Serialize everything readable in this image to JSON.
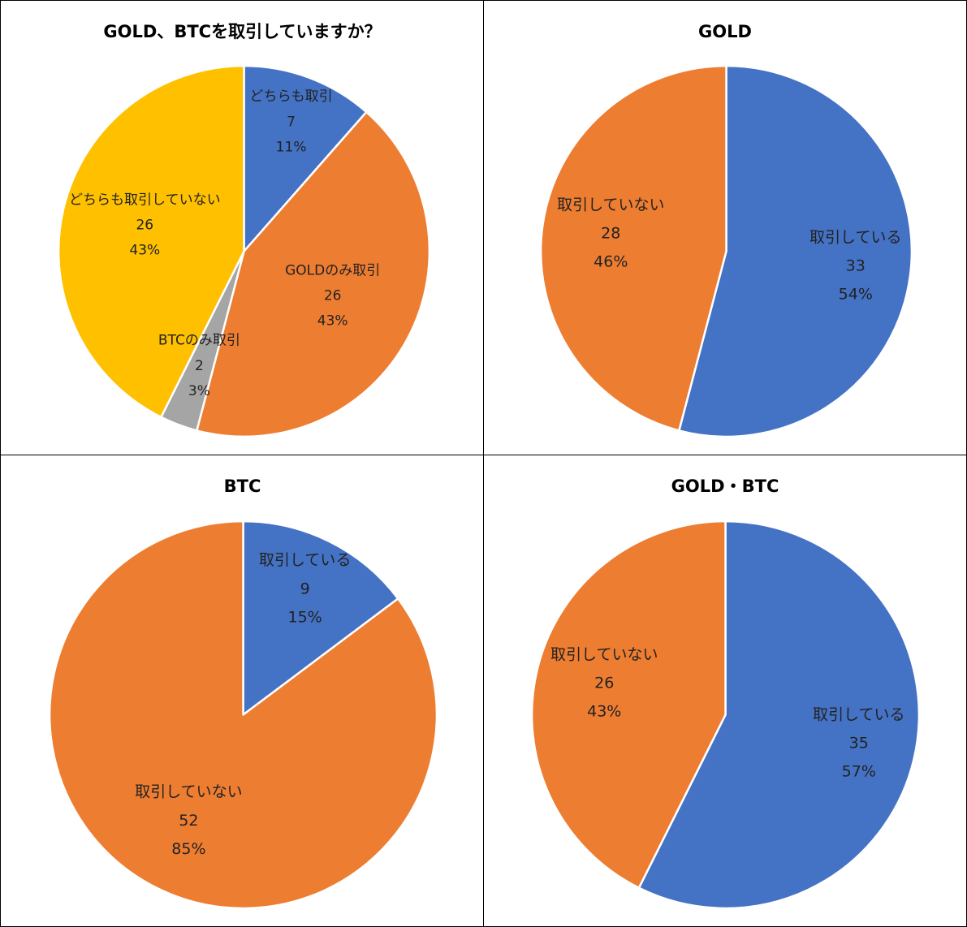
{
  "chart_data": [
    {
      "type": "pie",
      "title": "GOLD、BTCを取引していますか？",
      "slices": [
        {
          "label": "どちらも取引",
          "value": 7,
          "percent": "11%",
          "color": "#4472C4"
        },
        {
          "label": "GOLDのみ取引",
          "value": 26,
          "percent": "43%",
          "color": "#ED7D31"
        },
        {
          "label": "BTCのみ取引",
          "value": 2,
          "percent": "3%",
          "color": "#A5A5A5"
        },
        {
          "label": "どちらも取引していない",
          "value": 26,
          "percent": "43%",
          "color": "#FFC000"
        }
      ]
    },
    {
      "type": "pie",
      "title": "GOLD",
      "slices": [
        {
          "label": "取引している",
          "value": 33,
          "percent": "54%",
          "color": "#4472C4"
        },
        {
          "label": "取引していない",
          "value": 28,
          "percent": "46%",
          "color": "#ED7D31"
        }
      ]
    },
    {
      "type": "pie",
      "title": "BTC",
      "slices": [
        {
          "label": "取引している",
          "value": 9,
          "percent": "15%",
          "color": "#4472C4"
        },
        {
          "label": "取引していない",
          "value": 52,
          "percent": "85%",
          "color": "#ED7D31"
        }
      ]
    },
    {
      "type": "pie",
      "title": "GOLD・BTC",
      "slices": [
        {
          "label": "取引している",
          "value": 35,
          "percent": "57%",
          "color": "#4472C4"
        },
        {
          "label": "取引していない",
          "value": 26,
          "percent": "43%",
          "color": "#ED7D31"
        }
      ]
    }
  ]
}
